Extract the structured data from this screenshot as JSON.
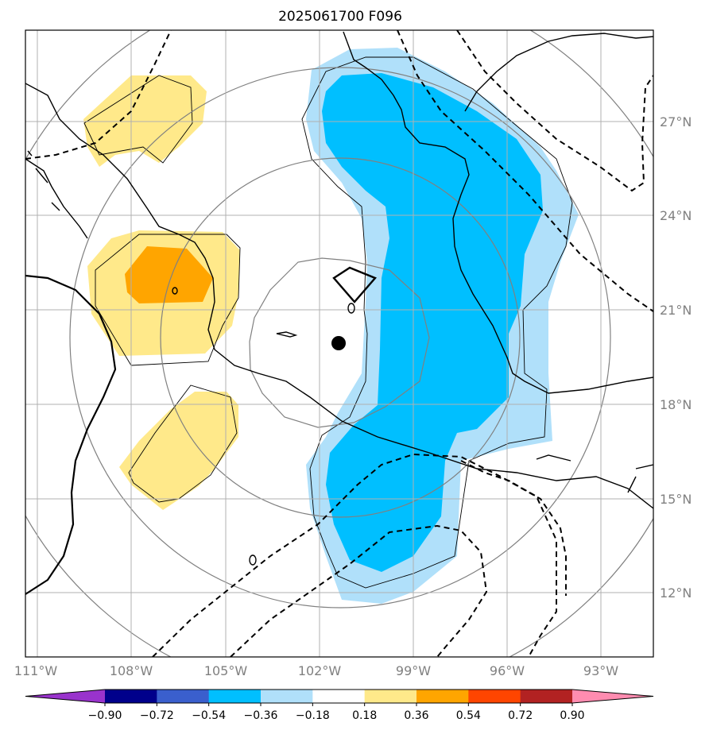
{
  "title": "2025061700 F096",
  "map": {
    "lon_labels": [
      "111°W",
      "108°W",
      "105°W",
      "102°W",
      "99°W",
      "96°W",
      "93°W"
    ],
    "lat_labels": [
      "27°N",
      "24°N",
      "21°N",
      "18°N",
      "15°N",
      "12°N"
    ],
    "center_marker": "filled-dot",
    "zero_contour_label": "0"
  },
  "colorbar": {
    "ticks": [
      "−0.90",
      "−0.72",
      "−0.54",
      "−0.36",
      "−0.18",
      "0.18",
      "0.36",
      "0.54",
      "0.72",
      "0.90"
    ],
    "colors": [
      "#9933cc",
      "#00008b",
      "#3a5fcd",
      "#00bfff",
      "#b0e0fa",
      "#ffffff",
      "#ffe98a",
      "#ffa500",
      "#ff4500",
      "#b22222",
      "#ff8cb0"
    ]
  },
  "fill_colors": {
    "neg_light": "#b0e0fa",
    "neg_mid": "#00bfff",
    "pos_light": "#ffe98a",
    "pos_mid": "#ffa500"
  }
}
